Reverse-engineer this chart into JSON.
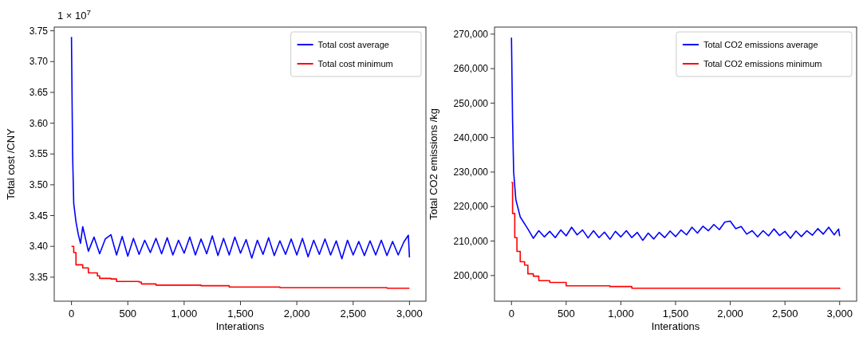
{
  "chart_data": [
    {
      "type": "line",
      "xlabel": "Interations",
      "ylabel": "Total cost /CNY",
      "annotations": [
        "1 × 10$^{7}$"
      ],
      "legend": "top right",
      "xlim": [
        -153,
        3146
      ],
      "xticks": [
        {
          "value": 0,
          "label": "0"
        },
        {
          "value": 500,
          "label": "500"
        },
        {
          "value": 1000,
          "label": "1,000"
        },
        {
          "value": 1500,
          "label": "1,500"
        },
        {
          "value": 2000,
          "label": "2,000"
        },
        {
          "value": 2500,
          "label": "2,500"
        },
        {
          "value": 3000,
          "label": "3,000"
        }
      ],
      "ylim": [
        3.311,
        3.756
      ],
      "yticks": [
        {
          "value": 3.35,
          "label": "3.35"
        },
        {
          "value": 3.4,
          "label": "3.40"
        },
        {
          "value": 3.45,
          "label": "3.45"
        },
        {
          "value": 3.5,
          "label": "3.50"
        },
        {
          "value": 3.55,
          "label": "3.55"
        },
        {
          "value": 3.6,
          "label": "3.60"
        },
        {
          "value": 3.65,
          "label": "3.65"
        },
        {
          "value": 3.7,
          "label": "3.70"
        },
        {
          "value": 3.75,
          "label": "3.75"
        }
      ],
      "series": [
        {
          "name": "Total cost average",
          "color": "#0000ff",
          "x": [
            0,
            10,
            20,
            40,
            60,
            80,
            100,
            150,
            200,
            250,
            300,
            350,
            400,
            450,
            500,
            550,
            600,
            650,
            700,
            750,
            800,
            850,
            900,
            950,
            1000,
            1050,
            1100,
            1150,
            1200,
            1250,
            1300,
            1350,
            1400,
            1450,
            1500,
            1550,
            1600,
            1650,
            1700,
            1750,
            1800,
            1850,
            1900,
            1950,
            2000,
            2050,
            2100,
            2150,
            2200,
            2250,
            2300,
            2350,
            2400,
            2450,
            2500,
            2550,
            2600,
            2650,
            2700,
            2750,
            2800,
            2850,
            2900,
            2950,
            2990,
            3000
          ],
          "values": [
            3.74,
            3.55,
            3.47,
            3.44,
            3.42,
            3.405,
            3.432,
            3.392,
            3.415,
            3.388,
            3.412,
            3.419,
            3.386,
            3.416,
            3.384,
            3.413,
            3.387,
            3.41,
            3.39,
            3.413,
            3.388,
            3.414,
            3.386,
            3.41,
            3.389,
            3.415,
            3.386,
            3.412,
            3.388,
            3.417,
            3.385,
            3.413,
            3.386,
            3.415,
            3.389,
            3.411,
            3.381,
            3.41,
            3.387,
            3.414,
            3.385,
            3.409,
            3.387,
            3.412,
            3.386,
            3.413,
            3.383,
            3.41,
            3.387,
            3.412,
            3.386,
            3.409,
            3.38,
            3.41,
            3.386,
            3.408,
            3.385,
            3.409,
            3.386,
            3.41,
            3.385,
            3.408,
            3.386,
            3.407,
            3.418,
            3.382
          ]
        },
        {
          "name": "Total cost minimum",
          "color": "#ff0000",
          "type": "step",
          "x": [
            0,
            20,
            40,
            100,
            150,
            230,
            250,
            350,
            400,
            600,
            620,
            750,
            1150,
            1400,
            1850,
            2300,
            2800,
            3000
          ],
          "values": [
            3.4,
            3.39,
            3.37,
            3.365,
            3.357,
            3.352,
            3.348,
            3.347,
            3.343,
            3.342,
            3.339,
            3.337,
            3.336,
            3.334,
            3.333,
            3.333,
            3.332,
            3.332
          ]
        }
      ]
    },
    {
      "type": "line",
      "xlabel": "Interations",
      "ylabel": "Total CO2 emissions /kg",
      "legend": "top right",
      "xlim": [
        -155,
        3155
      ],
      "xticks": [
        {
          "value": 0,
          "label": "0"
        },
        {
          "value": 500,
          "label": "500"
        },
        {
          "value": 1000,
          "label": "1,000"
        },
        {
          "value": 1500,
          "label": "1,500"
        },
        {
          "value": 2000,
          "label": "2,000"
        },
        {
          "value": 2500,
          "label": "2,500"
        },
        {
          "value": 3000,
          "label": "3,000"
        }
      ],
      "ylim": [
        192560,
        272040
      ],
      "yticks": [
        {
          "value": 200000,
          "label": "200,000"
        },
        {
          "value": 210000,
          "label": "210,000"
        },
        {
          "value": 220000,
          "label": "220,000"
        },
        {
          "value": 230000,
          "label": "230,000"
        },
        {
          "value": 240000,
          "label": "240,000"
        },
        {
          "value": 250000,
          "label": "250,000"
        },
        {
          "value": 260000,
          "label": "260,000"
        },
        {
          "value": 270000,
          "label": "270,000"
        }
      ],
      "series": [
        {
          "name": "Total CO2 emissions average",
          "color": "#0000ff",
          "x": [
            0,
            10,
            20,
            40,
            80,
            150,
            200,
            250,
            300,
            350,
            400,
            450,
            500,
            550,
            600,
            650,
            700,
            750,
            800,
            850,
            900,
            950,
            1000,
            1050,
            1100,
            1150,
            1200,
            1250,
            1300,
            1350,
            1400,
            1450,
            1500,
            1550,
            1600,
            1650,
            1700,
            1750,
            1800,
            1850,
            1900,
            1950,
            2000,
            2050,
            2100,
            2150,
            2200,
            2250,
            2300,
            2350,
            2400,
            2450,
            2500,
            2550,
            2600,
            2650,
            2700,
            2750,
            2800,
            2850,
            2900,
            2950,
            2990,
            3000
          ],
          "values": [
            269000,
            245000,
            230000,
            222000,
            217000,
            213500,
            210800,
            213000,
            211200,
            212800,
            211000,
            213200,
            211500,
            214000,
            211800,
            213200,
            210900,
            213000,
            211000,
            212600,
            210500,
            212800,
            211200,
            213000,
            211000,
            212500,
            210200,
            212300,
            210600,
            212500,
            211000,
            212900,
            211300,
            213200,
            211800,
            214000,
            212300,
            214300,
            213000,
            214800,
            213300,
            215500,
            215800,
            213600,
            214200,
            212000,
            213000,
            211200,
            213000,
            211500,
            213500,
            211600,
            212800,
            210800,
            212900,
            211300,
            213000,
            211700,
            213600,
            212000,
            214000,
            211800,
            213500,
            211400
          ]
        },
        {
          "name": "Total CO2 emissions minimum",
          "color": "#ff0000",
          "type": "step",
          "x": [
            0,
            10,
            30,
            50,
            80,
            120,
            150,
            200,
            250,
            350,
            500,
            900,
            1100,
            3000
          ],
          "values": [
            227000,
            218000,
            211000,
            207000,
            204000,
            203000,
            200500,
            199800,
            198500,
            198000,
            197000,
            196800,
            196300,
            196100
          ]
        }
      ]
    }
  ]
}
